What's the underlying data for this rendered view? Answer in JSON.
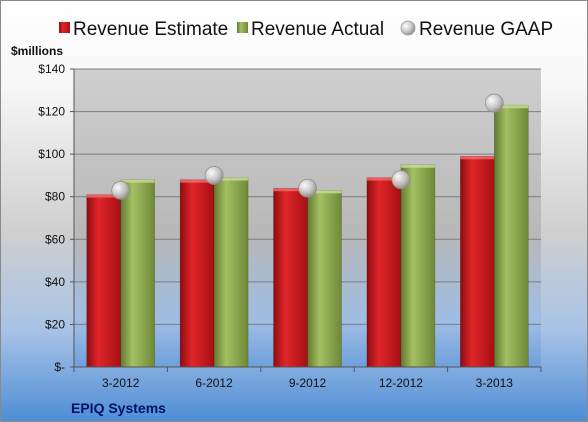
{
  "chart_data": {
    "type": "bar",
    "categories": [
      "3-2012",
      "6-2012",
      "9-2012",
      "12-2012",
      "3-2013"
    ],
    "series": [
      {
        "name": "Revenue Estimate",
        "kind": "bar",
        "color": "#c8181c",
        "values": [
          81,
          88,
          84,
          89,
          99
        ]
      },
      {
        "name": "Revenue Actual",
        "kind": "bar",
        "color": "#8aa54a",
        "values": [
          88,
          89,
          83,
          95,
          123
        ]
      },
      {
        "name": "Revenue GAAP",
        "kind": "marker",
        "color": "#b9b9b9",
        "values": [
          83,
          90,
          84,
          88,
          124
        ]
      }
    ],
    "ylabel": "$millions",
    "ylim": [
      0,
      140
    ],
    "yticks": [
      0,
      20,
      40,
      60,
      80,
      100,
      120,
      140
    ],
    "ytick_labels": [
      "$-",
      "$20",
      "$40",
      "$60",
      "$80",
      "$100",
      "$120",
      "$140"
    ],
    "grid": true,
    "legend_position": "top"
  },
  "footer": {
    "company": "EPIQ Systems"
  }
}
